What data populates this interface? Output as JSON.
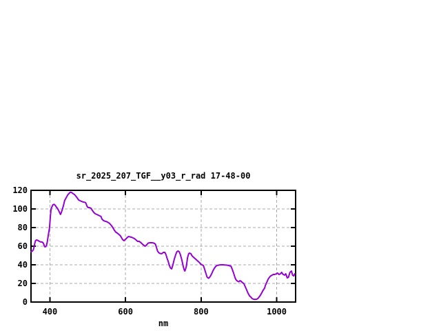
{
  "window": {
    "background": "#ffffff",
    "text_color": "#000000"
  },
  "chart_data": {
    "type": "line",
    "title": "sr_2025_207_TGF__y03_r_rad 17-48-00",
    "xlabel": "nm",
    "ylabel": "",
    "xlim": [
      350,
      1050
    ],
    "ylim": [
      0,
      120
    ],
    "x_ticks": [
      400,
      600,
      800,
      1000
    ],
    "y_ticks": [
      0,
      20,
      40,
      60,
      80,
      100,
      120
    ],
    "grid": true,
    "grid_style": "dashed",
    "legend_position": "none",
    "line_color": "#9400d3",
    "grid_color": "#a9a9a9",
    "border_color": "#000000",
    "series": [
      {
        "points": [
          [
            350,
            54
          ],
          [
            353,
            54.5
          ],
          [
            356,
            56
          ],
          [
            358,
            59
          ],
          [
            360,
            63
          ],
          [
            362,
            66
          ],
          [
            365,
            66.7
          ],
          [
            368,
            66.2
          ],
          [
            372,
            65.2
          ],
          [
            376,
            64.5
          ],
          [
            380,
            64.4
          ],
          [
            383,
            63
          ],
          [
            386,
            59.5
          ],
          [
            389,
            59.4
          ],
          [
            391,
            61
          ],
          [
            393,
            64.5
          ],
          [
            395,
            70
          ],
          [
            397,
            75
          ],
          [
            399,
            80
          ],
          [
            401,
            91
          ],
          [
            403,
            100
          ],
          [
            405,
            102
          ],
          [
            408,
            104.5
          ],
          [
            411,
            105
          ],
          [
            414,
            104
          ],
          [
            417,
            102
          ],
          [
            420,
            100.6
          ],
          [
            423,
            98.5
          ],
          [
            426,
            95.6
          ],
          [
            428,
            94.1
          ],
          [
            430,
            96
          ],
          [
            433,
            99.5
          ],
          [
            436,
            104
          ],
          [
            439,
            109
          ],
          [
            443,
            112
          ],
          [
            447,
            115
          ],
          [
            450,
            116.5
          ],
          [
            454,
            118
          ],
          [
            457,
            117.8
          ],
          [
            461,
            116.5
          ],
          [
            465,
            115.5
          ],
          [
            468,
            114.1
          ],
          [
            472,
            112
          ],
          [
            476,
            109.6
          ],
          [
            480,
            108.8
          ],
          [
            484,
            108.1
          ],
          [
            488,
            107.5
          ],
          [
            492,
            107.2
          ],
          [
            495,
            106.5
          ],
          [
            498,
            103
          ],
          [
            501,
            101.5
          ],
          [
            505,
            101.5
          ],
          [
            509,
            100.7
          ],
          [
            512,
            98.5
          ],
          [
            516,
            96.3
          ],
          [
            520,
            94.8
          ],
          [
            524,
            94.1
          ],
          [
            528,
            93.3
          ],
          [
            532,
            92.6
          ],
          [
            535,
            91.9
          ],
          [
            538,
            89
          ],
          [
            542,
            87.5
          ],
          [
            546,
            86.8
          ],
          [
            550,
            86.4
          ],
          [
            554,
            85.5
          ],
          [
            558,
            84.4
          ],
          [
            562,
            82.5
          ],
          [
            566,
            80.3
          ],
          [
            570,
            77.5
          ],
          [
            574,
            75.2
          ],
          [
            578,
            74.1
          ],
          [
            582,
            72.8
          ],
          [
            586,
            71.3
          ],
          [
            589,
            69.5
          ],
          [
            592,
            67.2
          ],
          [
            596,
            65.9
          ],
          [
            600,
            67.4
          ],
          [
            604,
            69
          ],
          [
            608,
            70.4
          ],
          [
            612,
            70
          ],
          [
            616,
            69.6
          ],
          [
            620,
            68.9
          ],
          [
            624,
            68.1
          ],
          [
            628,
            66.7
          ],
          [
            632,
            65.2
          ],
          [
            636,
            65.2
          ],
          [
            640,
            64.1
          ],
          [
            644,
            62.5
          ],
          [
            648,
            61
          ],
          [
            652,
            60
          ],
          [
            655,
            61
          ],
          [
            660,
            63.3
          ],
          [
            665,
            63.7
          ],
          [
            670,
            63.7
          ],
          [
            675,
            63.3
          ],
          [
            679,
            62.2
          ],
          [
            682,
            58.5
          ],
          [
            685,
            54.5
          ],
          [
            689,
            52.6
          ],
          [
            693,
            52
          ],
          [
            696,
            51.9
          ],
          [
            700,
            53.3
          ],
          [
            704,
            53.3
          ],
          [
            707,
            51.1
          ],
          [
            710,
            47
          ],
          [
            713,
            43.7
          ],
          [
            716,
            39.3
          ],
          [
            719,
            36.5
          ],
          [
            722,
            35.6
          ],
          [
            725,
            39.3
          ],
          [
            729,
            46
          ],
          [
            733,
            51.1
          ],
          [
            736,
            54.1
          ],
          [
            739,
            54.8
          ],
          [
            742,
            54.1
          ],
          [
            745,
            51.1
          ],
          [
            749,
            45.2
          ],
          [
            753,
            37.8
          ],
          [
            755,
            34.8
          ],
          [
            757,
            33.3
          ],
          [
            759,
            35.6
          ],
          [
            761,
            38.5
          ],
          [
            764,
            47.4
          ],
          [
            767,
            51.9
          ],
          [
            769,
            52.6
          ],
          [
            773,
            51.9
          ],
          [
            776,
            49.6
          ],
          [
            780,
            48.1
          ],
          [
            784,
            46.7
          ],
          [
            788,
            45.2
          ],
          [
            792,
            43.7
          ],
          [
            796,
            42.2
          ],
          [
            799,
            40.7
          ],
          [
            802,
            40
          ],
          [
            806,
            39.3
          ],
          [
            809,
            35.6
          ],
          [
            813,
            30.4
          ],
          [
            816,
            26.7
          ],
          [
            820,
            25.5
          ],
          [
            824,
            27.4
          ],
          [
            828,
            30.4
          ],
          [
            831,
            33.3
          ],
          [
            835,
            36.3
          ],
          [
            839,
            38.5
          ],
          [
            843,
            39.3
          ],
          [
            848,
            39.8
          ],
          [
            853,
            40
          ],
          [
            858,
            40
          ],
          [
            863,
            39.8
          ],
          [
            868,
            39.6
          ],
          [
            872,
            39.3
          ],
          [
            876,
            38.9
          ],
          [
            879,
            38.5
          ],
          [
            882,
            35.6
          ],
          [
            886,
            31.1
          ],
          [
            890,
            25.9
          ],
          [
            893,
            23.5
          ],
          [
            897,
            22.2
          ],
          [
            900,
            21.8
          ],
          [
            903,
            23
          ],
          [
            906,
            22.2
          ],
          [
            910,
            20.7
          ],
          [
            913,
            20
          ],
          [
            917,
            16.3
          ],
          [
            921,
            12.6
          ],
          [
            924,
            9.6
          ],
          [
            928,
            6.7
          ],
          [
            932,
            5.2
          ],
          [
            935,
            3.7
          ],
          [
            939,
            3
          ],
          [
            943,
            2.8
          ],
          [
            947,
            3
          ],
          [
            950,
            3.7
          ],
          [
            953,
            5.2
          ],
          [
            957,
            7.4
          ],
          [
            961,
            10.4
          ],
          [
            964,
            12.6
          ],
          [
            968,
            15
          ],
          [
            970,
            17.8
          ],
          [
            973,
            20.7
          ],
          [
            977,
            24.4
          ],
          [
            981,
            26.7
          ],
          [
            984,
            28.1
          ],
          [
            988,
            28.9
          ],
          [
            991,
            29.6
          ],
          [
            995,
            29.6
          ],
          [
            999,
            30.4
          ],
          [
            1002,
            31.1
          ],
          [
            1006,
            29.6
          ],
          [
            1010,
            30.4
          ],
          [
            1013,
            31.9
          ],
          [
            1017,
            29.6
          ],
          [
            1021,
            28.9
          ],
          [
            1024,
            30.4
          ],
          [
            1028,
            25.9
          ],
          [
            1031,
            26.7
          ],
          [
            1035,
            31.9
          ],
          [
            1039,
            33.3
          ],
          [
            1042,
            28.9
          ],
          [
            1045,
            28.1
          ],
          [
            1048,
            30.4
          ]
        ]
      }
    ]
  }
}
